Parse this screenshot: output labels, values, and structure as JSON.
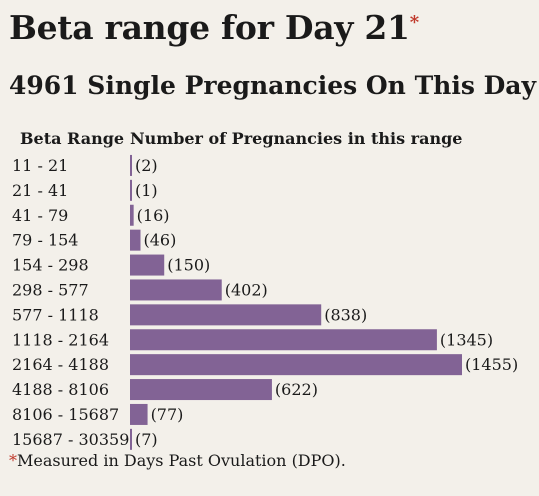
{
  "title": "Beta range for Day 21",
  "title_marker": "*",
  "subtitle": "4961 Single Pregnancies On This Day",
  "footnote_marker": "*",
  "footnote": "Measured in Days Past Ovulation (DPO).",
  "colors": {
    "bar": "#826395",
    "background": "#f3f0ea",
    "marker": "#c0392b"
  },
  "chart_data": {
    "type": "bar",
    "orientation": "horizontal",
    "xlabel": "Number of Pregnancies in this range",
    "ylabel": "Beta Range",
    "categories": [
      "11 - 21",
      "21 - 41",
      "41 - 79",
      "79 - 154",
      "154 - 298",
      "298 - 577",
      "577 - 1118",
      "1118 - 2164",
      "2164 - 4188",
      "4188 - 8106",
      "8106 - 15687",
      "15687 - 30359"
    ],
    "values": [
      2,
      1,
      16,
      46,
      150,
      402,
      838,
      1345,
      1455,
      622,
      77,
      7
    ],
    "data_labels": [
      "(2)",
      "(1)",
      "(16)",
      "(46)",
      "(150)",
      "(402)",
      "(838)",
      "(1345)",
      "(1455)",
      "(622)",
      "(77)",
      "(7)"
    ],
    "xlim": [
      0,
      1455
    ],
    "grid": false,
    "legend": "none"
  }
}
